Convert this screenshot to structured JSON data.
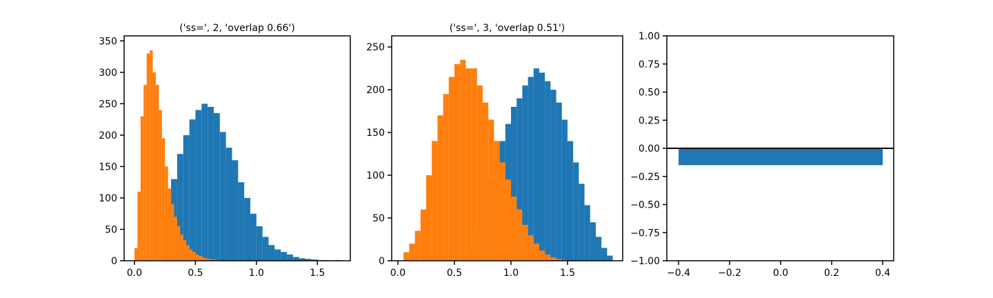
{
  "chart_data": [
    {
      "type": "histogram",
      "title": "('ss=', 2, 'overlap 0.66')",
      "xlim": [
        -0.085,
        1.77
      ],
      "ylim": [
        0,
        358
      ],
      "xticks": [
        {
          "value": 0,
          "label": "0.0"
        },
        0.5,
        {
          "value": 1,
          "label": "1.0"
        },
        1.5
      ],
      "yticks": [
        0,
        50,
        100,
        150,
        200,
        250,
        300,
        350
      ],
      "series": [
        {
          "color": "#1f77b4",
          "bins": [
            0.25,
            0.3,
            0.35,
            0.4,
            0.45,
            0.5,
            0.55,
            0.6,
            0.65,
            0.7,
            0.75,
            0.8,
            0.85,
            0.9,
            0.95,
            1.0,
            1.05,
            1.1,
            1.15,
            1.2,
            1.25,
            1.3,
            1.35,
            1.4,
            1.45,
            1.5,
            1.55,
            1.6,
            1.65,
            1.7
          ],
          "values": [
            60,
            130,
            170,
            200,
            225,
            240,
            250,
            245,
            235,
            205,
            180,
            160,
            125,
            100,
            75,
            55,
            38,
            25,
            18,
            14,
            10,
            6,
            4,
            3,
            2,
            1,
            1,
            0,
            1
          ]
        },
        {
          "color": "#ff7f0e",
          "bins": [
            0,
            0.025,
            0.05,
            0.075,
            0.1,
            0.125,
            0.15,
            0.175,
            0.2,
            0.225,
            0.25,
            0.275,
            0.3,
            0.325,
            0.35,
            0.375,
            0.4,
            0.425,
            0.45,
            0.475,
            0.5,
            0.525,
            0.55,
            0.575,
            0.6,
            0.625,
            0.65,
            0.675,
            0.7,
            0.725,
            0.75
          ],
          "values": [
            20,
            110,
            230,
            280,
            330,
            335,
            300,
            280,
            240,
            195,
            150,
            115,
            90,
            70,
            55,
            42,
            33,
            25,
            18,
            14,
            10,
            8,
            6,
            4,
            3,
            2,
            2,
            1,
            1,
            0
          ]
        }
      ]
    },
    {
      "type": "histogram",
      "title": "('ss=', 3, 'overlap 0.51')",
      "xlim": [
        -0.055,
        1.988
      ],
      "ylim": [
        0,
        263
      ],
      "xticks": [
        {
          "value": 0,
          "label": "0.0"
        },
        0.5,
        {
          "value": 1,
          "label": "1.0"
        },
        1.5
      ],
      "yticks": [
        0,
        50,
        100,
        150,
        200,
        250
      ],
      "series": [
        {
          "color": "#1f77b4",
          "bins": [
            0.6,
            0.65,
            0.7,
            0.75,
            0.8,
            0.85,
            0.9,
            0.95,
            1.0,
            1.05,
            1.1,
            1.15,
            1.2,
            1.25,
            1.3,
            1.35,
            1.4,
            1.45,
            1.5,
            1.55,
            1.6,
            1.65,
            1.7,
            1.75,
            1.8,
            1.85,
            1.9
          ],
          "values": [
            5,
            15,
            40,
            70,
            95,
            120,
            140,
            160,
            180,
            190,
            205,
            215,
            225,
            220,
            210,
            200,
            185,
            165,
            140,
            115,
            90,
            65,
            45,
            28,
            15,
            6
          ]
        },
        {
          "color": "#ff7f0e",
          "bins": [
            0.05,
            0.1,
            0.15,
            0.2,
            0.25,
            0.3,
            0.35,
            0.4,
            0.45,
            0.5,
            0.55,
            0.6,
            0.65,
            0.7,
            0.75,
            0.8,
            0.85,
            0.9,
            0.95,
            1.0,
            1.05,
            1.1,
            1.15,
            1.2,
            1.25,
            1.3,
            1.35,
            1.4,
            1.45,
            1.5
          ],
          "values": [
            10,
            20,
            35,
            60,
            100,
            140,
            170,
            195,
            215,
            230,
            235,
            225,
            225,
            205,
            185,
            165,
            140,
            115,
            95,
            75,
            60,
            42,
            30,
            20,
            12,
            7,
            4,
            2,
            1
          ]
        }
      ]
    },
    {
      "type": "bar",
      "xlim": [
        -0.446,
        0.443
      ],
      "ylim": [
        -1,
        1
      ],
      "xticks": [
        {
          "value": -0.4,
          "label": "−0.4"
        },
        {
          "value": -0.2,
          "label": "−0.2"
        },
        {
          "value": 0,
          "label": "0.0"
        },
        {
          "value": 0.2,
          "label": "0.2"
        },
        {
          "value": 0.4,
          "label": "0.4"
        }
      ],
      "yticks": [
        {
          "value": -1,
          "label": "−1.00"
        },
        {
          "value": -0.75,
          "label": "−0.75"
        },
        {
          "value": -0.5,
          "label": "−0.50"
        },
        {
          "value": -0.25,
          "label": "−0.25"
        },
        {
          "value": 0,
          "label": "0.00"
        },
        {
          "value": 0.25,
          "label": "0.25"
        },
        {
          "value": 0.5,
          "label": "0.50"
        },
        {
          "value": 0.75,
          "label": "0.75"
        },
        {
          "value": 1,
          "label": "1.00"
        }
      ],
      "x": [
        0
      ],
      "values": [
        -0.15
      ],
      "bar_width": 0.8,
      "color": "#1f77b4",
      "axhline": 0
    }
  ]
}
